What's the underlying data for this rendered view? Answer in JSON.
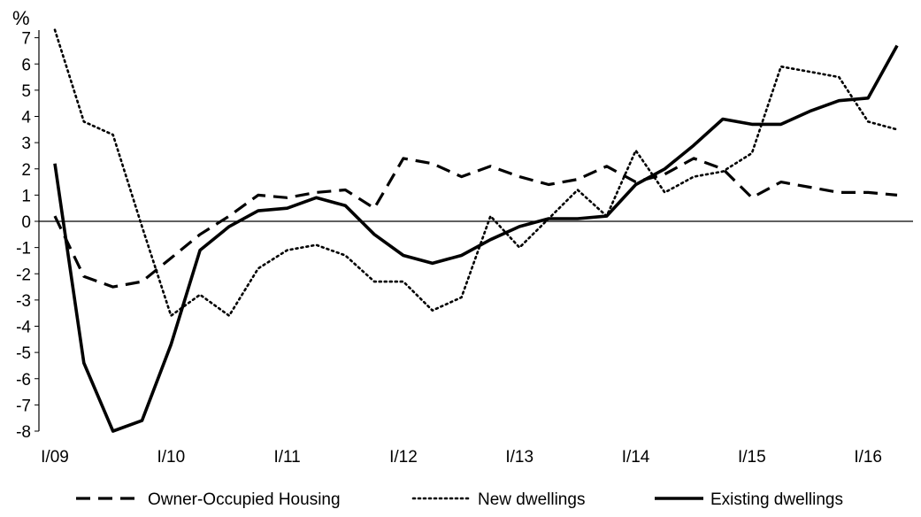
{
  "chart_data": {
    "type": "line",
    "y_unit_label": "%",
    "ylim": [
      -8,
      8
    ],
    "yticks": [
      7,
      6,
      5,
      4,
      3,
      2,
      1,
      0,
      -1,
      -2,
      -3,
      -4,
      -5,
      -6,
      -7,
      -8
    ],
    "x_start_index": 0,
    "x_end_index": 29,
    "xtick_labels": [
      {
        "index": 0,
        "label": "I/09"
      },
      {
        "index": 4,
        "label": "I/10"
      },
      {
        "index": 8,
        "label": "I/11"
      },
      {
        "index": 12,
        "label": "I/12"
      },
      {
        "index": 16,
        "label": "I/13"
      },
      {
        "index": 20,
        "label": "I/14"
      },
      {
        "index": 24,
        "label": "I/15"
      },
      {
        "index": 28,
        "label": "I/16"
      }
    ],
    "grid": false,
    "legend_position": "bottom",
    "series": [
      {
        "name": "Owner-Occupied Housing",
        "style": "dashed",
        "values": [
          0.2,
          -2.1,
          -2.5,
          -2.3,
          -1.4,
          -0.5,
          0.2,
          1.0,
          0.9,
          1.1,
          1.2,
          0.5,
          2.4,
          2.2,
          1.7,
          2.1,
          1.7,
          1.4,
          1.6,
          2.1,
          1.5,
          1.8,
          2.4,
          2.0,
          0.9,
          1.5,
          1.3,
          1.1,
          1.1,
          1.0
        ]
      },
      {
        "name": "New dwellings",
        "style": "dotted",
        "values": [
          7.3,
          3.8,
          3.3,
          -0.2,
          -3.6,
          -2.8,
          -3.6,
          -1.8,
          -1.1,
          -0.9,
          -1.3,
          -2.3,
          -2.3,
          -3.4,
          -2.9,
          0.2,
          -1.0,
          0.1,
          1.2,
          0.2,
          2.7,
          1.1,
          1.7,
          1.9,
          2.6,
          5.9,
          5.7,
          5.5,
          3.8,
          3.5
        ]
      },
      {
        "name": "Existing dwellings",
        "style": "solid",
        "values": [
          2.2,
          -5.4,
          -8.0,
          -7.6,
          -4.7,
          -1.1,
          -0.2,
          0.4,
          0.5,
          0.9,
          0.6,
          -0.5,
          -1.3,
          -1.6,
          -1.3,
          -0.7,
          -0.2,
          0.1,
          0.1,
          0.2,
          1.4,
          2.0,
          2.9,
          3.9,
          3.7,
          3.7,
          4.2,
          4.6,
          4.7,
          6.7
        ]
      }
    ]
  }
}
